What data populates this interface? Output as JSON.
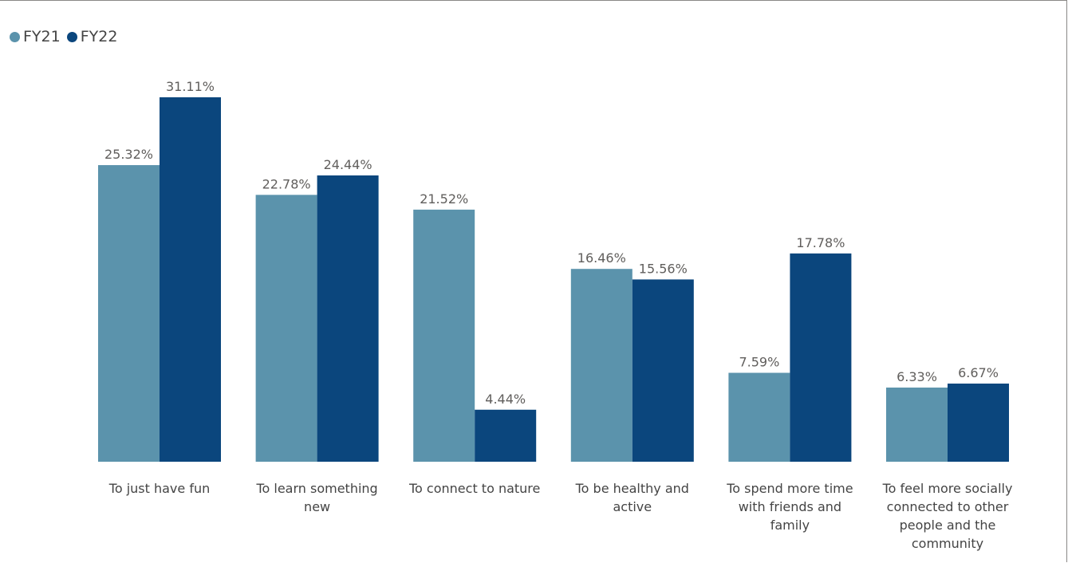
{
  "chart_data": {
    "type": "bar",
    "categories": [
      [
        "To just have fun"
      ],
      [
        "To learn something",
        "new"
      ],
      [
        "To connect to nature"
      ],
      [
        "To be healthy and",
        "active"
      ],
      [
        "To spend more time",
        "with friends and",
        "family"
      ],
      [
        "To feel more socially",
        "connected to other",
        "people and the",
        "community"
      ]
    ],
    "series": [
      {
        "name": "FY21",
        "color": "#5b93ac",
        "values": [
          25.32,
          22.78,
          21.52,
          16.46,
          7.59,
          6.33
        ],
        "labels": [
          "25.32%",
          "22.78%",
          "21.52%",
          "16.46%",
          "7.59%",
          "6.33%"
        ]
      },
      {
        "name": "FY22",
        "color": "#0b467d",
        "values": [
          31.11,
          24.44,
          4.44,
          15.56,
          17.78,
          6.67
        ],
        "labels": [
          "31.11%",
          "24.44%",
          "4.44%",
          "15.56%",
          "17.78%",
          "6.67%"
        ]
      }
    ],
    "ylim": [
      0,
      31.11
    ],
    "grid": false,
    "legend": "top-left",
    "data_labels": true
  }
}
